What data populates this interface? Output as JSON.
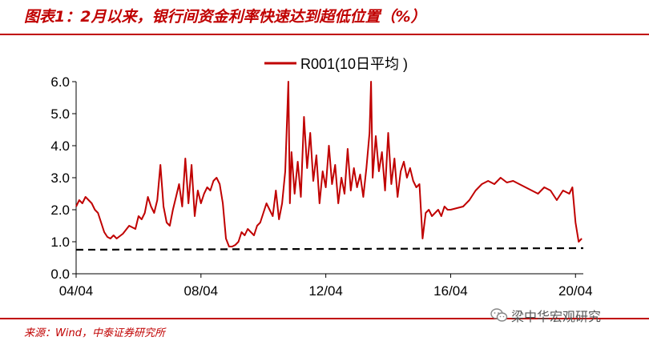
{
  "header": {
    "title": "图表1：2月以来，银行间资金利率快速达到超低位置（%）"
  },
  "footer": {
    "source": "来源：Wind，中泰证券研究所",
    "watermark": "梁中华宏观研究"
  },
  "colors": {
    "accent": "#c00000",
    "series": "#c00000",
    "reference": "#000000"
  },
  "icons": {
    "watermark": "wechat-icon"
  },
  "chart_data": {
    "type": "line",
    "title": "",
    "xlabel": "",
    "ylabel": "",
    "ylim": [
      0.0,
      6.0
    ],
    "yticks": [
      "0.0",
      "1.0",
      "2.0",
      "3.0",
      "4.0",
      "5.0",
      "6.0"
    ],
    "xlim": [
      2004.0,
      2020.25
    ],
    "xticks": [
      {
        "value": 2004.0,
        "label": "04/04"
      },
      {
        "value": 2008.0,
        "label": "08/04"
      },
      {
        "value": 2012.0,
        "label": "12/04"
      },
      {
        "value": 2016.0,
        "label": "16/04"
      },
      {
        "value": 2020.0,
        "label": "20/04"
      }
    ],
    "legend": {
      "position": "top-center"
    },
    "grid": false,
    "series": [
      {
        "name": "R001(10日平均 )",
        "style": "solid",
        "x": [
          2004.0,
          2004.1,
          2004.2,
          2004.3,
          2004.4,
          2004.5,
          2004.6,
          2004.7,
          2004.8,
          2004.9,
          2005.0,
          2005.1,
          2005.2,
          2005.3,
          2005.5,
          2005.7,
          2005.9,
          2006.0,
          2006.1,
          2006.2,
          2006.3,
          2006.4,
          2006.5,
          2006.6,
          2006.7,
          2006.8,
          2006.9,
          2007.0,
          2007.1,
          2007.2,
          2007.3,
          2007.4,
          2007.5,
          2007.6,
          2007.7,
          2007.8,
          2007.9,
          2008.0,
          2008.1,
          2008.2,
          2008.3,
          2008.4,
          2008.5,
          2008.6,
          2008.7,
          2008.8,
          2008.9,
          2009.0,
          2009.1,
          2009.2,
          2009.3,
          2009.4,
          2009.5,
          2009.6,
          2009.7,
          2009.8,
          2009.9,
          2010.0,
          2010.1,
          2010.2,
          2010.3,
          2010.4,
          2010.5,
          2010.6,
          2010.7,
          2010.8,
          2010.85,
          2010.9,
          2011.0,
          2011.1,
          2011.2,
          2011.3,
          2011.4,
          2011.5,
          2011.6,
          2011.7,
          2011.8,
          2011.9,
          2012.0,
          2012.1,
          2012.2,
          2012.3,
          2012.4,
          2012.5,
          2012.6,
          2012.7,
          2012.8,
          2012.9,
          2013.0,
          2013.1,
          2013.2,
          2013.3,
          2013.4,
          2013.45,
          2013.5,
          2013.6,
          2013.7,
          2013.8,
          2013.9,
          2014.0,
          2014.1,
          2014.2,
          2014.3,
          2014.4,
          2014.5,
          2014.6,
          2014.7,
          2014.8,
          2014.9,
          2015.0,
          2015.1,
          2015.2,
          2015.3,
          2015.4,
          2015.5,
          2015.6,
          2015.7,
          2015.8,
          2015.9,
          2016.0,
          2016.2,
          2016.4,
          2016.6,
          2016.8,
          2017.0,
          2017.2,
          2017.4,
          2017.6,
          2017.8,
          2018.0,
          2018.2,
          2018.4,
          2018.6,
          2018.8,
          2019.0,
          2019.2,
          2019.4,
          2019.6,
          2019.8,
          2019.9,
          2020.0,
          2020.1,
          2020.2
        ],
        "y": [
          2.1,
          2.3,
          2.2,
          2.4,
          2.3,
          2.2,
          2.0,
          1.9,
          1.6,
          1.3,
          1.15,
          1.1,
          1.2,
          1.1,
          1.25,
          1.5,
          1.4,
          1.8,
          1.7,
          1.9,
          2.4,
          2.1,
          1.9,
          2.3,
          3.4,
          2.1,
          1.6,
          1.5,
          2.0,
          2.4,
          2.8,
          2.1,
          3.6,
          2.2,
          3.4,
          1.8,
          2.6,
          2.2,
          2.5,
          2.7,
          2.6,
          2.9,
          3.0,
          2.8,
          2.2,
          1.1,
          0.85,
          0.85,
          0.9,
          1.0,
          1.3,
          1.2,
          1.4,
          1.3,
          1.2,
          1.5,
          1.6,
          1.9,
          2.2,
          2.0,
          1.8,
          2.6,
          1.7,
          2.2,
          3.2,
          6.0,
          2.2,
          3.8,
          2.5,
          3.5,
          2.4,
          4.9,
          3.3,
          4.4,
          2.9,
          3.7,
          2.2,
          3.2,
          2.7,
          4.0,
          2.8,
          3.4,
          2.2,
          3.0,
          2.5,
          3.9,
          2.6,
          3.3,
          2.7,
          3.1,
          2.4,
          3.3,
          4.4,
          6.0,
          3.0,
          4.3,
          3.2,
          3.8,
          2.6,
          4.4,
          2.8,
          3.6,
          2.4,
          3.2,
          3.5,
          3.0,
          3.3,
          2.9,
          2.7,
          2.8,
          1.1,
          1.9,
          2.0,
          1.8,
          1.9,
          2.0,
          1.8,
          2.1,
          2.0,
          2.0,
          2.05,
          2.1,
          2.3,
          2.6,
          2.8,
          2.9,
          2.8,
          3.0,
          2.85,
          2.9,
          2.8,
          2.7,
          2.6,
          2.5,
          2.7,
          2.6,
          2.3,
          2.6,
          2.5,
          2.7,
          1.6,
          1.0,
          1.1
        ]
      },
      {
        "name": "",
        "style": "dashed",
        "x": [
          2004.0,
          2020.25
        ],
        "y": [
          0.75,
          0.8
        ]
      }
    ]
  }
}
